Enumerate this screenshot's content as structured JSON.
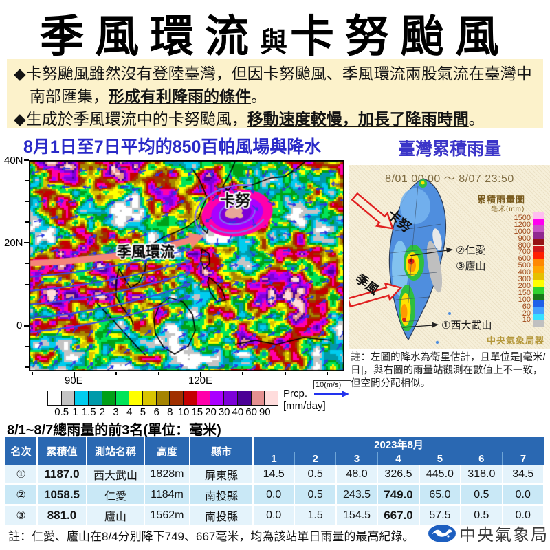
{
  "title": {
    "part1": "季風環流",
    "conj": "與",
    "part2": "卡努颱風"
  },
  "summary": {
    "bullet1_pre": "◆卡努颱風雖然沒有登陸臺灣，但因卡努颱風、季風環流兩股氣流在臺灣中南部匯集，",
    "bullet1_em": "形成有利降雨的條件",
    "bullet1_post": "。",
    "bullet2_pre": "◆生成於季風環流中的卡努颱風，",
    "bullet2_em": "移動速度較慢，加長了降雨時間",
    "bullet2_post": "。"
  },
  "wind_map": {
    "title": "8月1日至7日平均的850百帕風場與降水",
    "y_ticks": [
      "40N",
      "20N",
      "0"
    ],
    "x_ticks": [
      "90E",
      "120E"
    ],
    "labels": {
      "typhoon": "卡努",
      "monsoon": "季風環流"
    },
    "colorbar": {
      "values": [
        "0.5",
        "1",
        "1.5",
        "2",
        "3",
        "4",
        "5",
        "6",
        "8",
        "10",
        "15",
        "20",
        "30",
        "40",
        "60",
        "90"
      ],
      "colors": [
        "#ffffff",
        "#c4c4c4",
        "#00ccee",
        "#009aaa",
        "#00a018",
        "#00e458",
        "#ffff00",
        "#d8c400",
        "#a58400",
        "#a03000",
        "#c40000",
        "#ff00aa",
        "#aa00ff",
        "#7d00d8",
        "#4b0096",
        "#e49090",
        "#ffdcdc"
      ],
      "unit_line1": "Prcp.",
      "unit_line2": "[mm/day]",
      "wind_ref": "10(m/s)"
    }
  },
  "rain_map": {
    "title": "臺灣累積雨量",
    "period": "8/01 00:00 ～ 8/07 23:50",
    "legend_title": "累積雨量圖",
    "legend_unit": "毫米(mm)",
    "legend_values": [
      "1500",
      "1200",
      "1000",
      "900",
      "800",
      "700",
      "600",
      "500",
      "400",
      "300",
      "200",
      "150",
      "100",
      "60",
      "20",
      "10"
    ],
    "legend_colors": [
      "#ffbef0",
      "#ff00f0",
      "#c655c6",
      "#8f2a8f",
      "#941414",
      "#cc1a1a",
      "#ff2000",
      "#ff8800",
      "#ffa500",
      "#e6c000",
      "#ffff00",
      "#2fd22f",
      "#187818",
      "#2060e8",
      "#44a0ff",
      "#38e0ff",
      "#c0c0c0"
    ],
    "labels": {
      "typhoon": "卡努",
      "monsoon": "季風",
      "st1": "①西大武山",
      "st2": "②仁愛",
      "st3": "③廬山"
    },
    "credit": "中央氣象局製",
    "note": "註：左圖的降水為衛星估計，且單位是[毫米/日]，與右圖的雨量站觀測在數值上不一致，但空間分配相似。"
  },
  "table": {
    "title": "8/1~8/7總雨量的前3名(單位：毫米)",
    "headers": {
      "rank": "名次",
      "total": "累積值",
      "station": "測站名稱",
      "height": "高度",
      "county": "縣市",
      "month": "2023年8月",
      "days": [
        "1",
        "2",
        "3",
        "4",
        "5",
        "6",
        "7"
      ]
    },
    "rows": [
      {
        "rank": "①",
        "total": "1187.0",
        "station": "西大武山",
        "height": "1828m",
        "county": "屏東縣",
        "days": [
          "14.5",
          "0.5",
          "48.0",
          "326.5",
          "445.0",
          "318.0",
          "34.5"
        ]
      },
      {
        "rank": "②",
        "total": "1058.5",
        "station": "仁愛",
        "height": "1184m",
        "county": "南投縣",
        "days": [
          "0.0",
          "0.5",
          "243.5",
          "749.0",
          "65.0",
          "0.5",
          "0.0"
        ]
      },
      {
        "rank": "③",
        "total": "881.0",
        "station": "廬山",
        "height": "1562m",
        "county": "南投縣",
        "days": [
          "0.0",
          "1.5",
          "154.5",
          "667.0",
          "57.5",
          "0.5",
          "0.0"
        ]
      }
    ]
  },
  "footer": {
    "note": "註：仁愛、廬山在8/4分別降下749、667毫米，均為該站單日雨量的最高紀錄。",
    "logo_text": "中央氣象局"
  },
  "colors": {
    "section_title_blue": "#2a2ac8",
    "summary_bg": "#fcf2cb",
    "panel_beige": "#f6efd9",
    "table_header_blue": "#2a68b2",
    "row_light": "#e4f3fb",
    "row_mid": "#c9e8f6",
    "monsoon_arrow": "#f4857a",
    "alert_red": "#e02020"
  },
  "chart_data": [
    {
      "type": "table",
      "title": "8/1~8/7總雨量的前3名(單位：毫米)",
      "columns": [
        "名次",
        "累積值",
        "測站名稱",
        "高度",
        "縣市",
        "8/1",
        "8/2",
        "8/3",
        "8/4",
        "8/5",
        "8/6",
        "8/7"
      ],
      "rows": [
        [
          "①",
          1187.0,
          "西大武山",
          "1828m",
          "屏東縣",
          14.5,
          0.5,
          48.0,
          326.5,
          445.0,
          318.0,
          34.5
        ],
        [
          "②",
          1058.5,
          "仁愛",
          "1184m",
          "南投縣",
          0.0,
          0.5,
          243.5,
          749.0,
          65.0,
          0.5,
          0.0
        ],
        [
          "③",
          881.0,
          "廬山",
          "1562m",
          "南投縣",
          0.0,
          1.5,
          154.5,
          667.0,
          57.5,
          0.5,
          0.0
        ]
      ]
    },
    {
      "type": "heatmap",
      "title": "8月1日至7日平均的850百帕風場與降水",
      "x_ticks": [
        "90E",
        "120E"
      ],
      "y_ticks": [
        "40N",
        "20N",
        "0"
      ],
      "legend": {
        "unit": "mm/day",
        "thresholds": [
          0.5,
          1,
          1.5,
          2,
          3,
          4,
          5,
          6,
          8,
          10,
          15,
          20,
          30,
          40,
          60,
          90
        ]
      },
      "wind_reference": "10(m/s)",
      "annotations": [
        "卡努",
        "季風環流"
      ]
    },
    {
      "type": "heatmap",
      "title": "臺灣累積雨量",
      "period": "8/01 00:00 ～ 8/07 23:50",
      "legend": {
        "unit": "毫米(mm)",
        "thresholds": [
          1500,
          1200,
          1000,
          900,
          800,
          700,
          600,
          500,
          400,
          300,
          200,
          150,
          100,
          60,
          20,
          10
        ]
      },
      "annotations": [
        "卡努",
        "季風",
        "①西大武山",
        "②仁愛",
        "③廬山"
      ],
      "credit": "中央氣象局製"
    }
  ]
}
